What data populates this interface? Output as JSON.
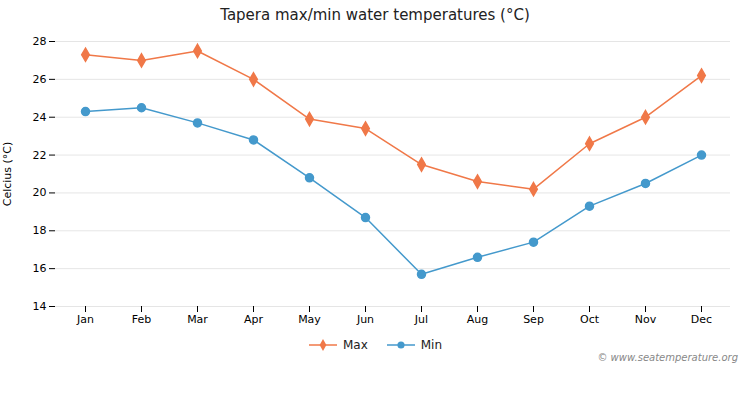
{
  "chart_data": {
    "type": "line",
    "title": "Tapera max/min water temperatures (°C)",
    "ylabel": "Celcius (°C)",
    "categories": [
      "Jan",
      "Feb",
      "Mar",
      "Apr",
      "May",
      "Jun",
      "Jul",
      "Aug",
      "Sep",
      "Oct",
      "Nov",
      "Dec"
    ],
    "series": [
      {
        "name": "Max",
        "color": "#f07848",
        "marker": "diamond",
        "values": [
          27.3,
          27.0,
          27.5,
          26.0,
          23.9,
          23.4,
          21.5,
          20.6,
          20.2,
          22.6,
          24.0,
          26.2
        ]
      },
      {
        "name": "Min",
        "color": "#4499cc",
        "marker": "circle",
        "values": [
          24.3,
          24.5,
          23.7,
          22.8,
          20.8,
          18.7,
          15.7,
          16.6,
          17.4,
          19.3,
          20.5,
          22.0
        ]
      }
    ],
    "ylim": [
      14,
      28
    ],
    "yticks": [
      14,
      16,
      18,
      20,
      22,
      24,
      26,
      28
    ],
    "grid": true,
    "legend": "bottom",
    "annotations": [
      "© www.seatemperature.org"
    ]
  }
}
